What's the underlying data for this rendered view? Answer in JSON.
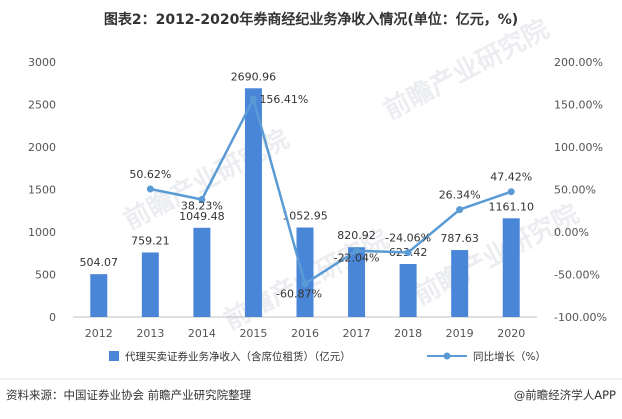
{
  "chart_data": {
    "type": "bar",
    "title": "图表2：2012-2020年券商经纪业务净收入情况(单位：亿元，%)",
    "categories": [
      "2012",
      "2013",
      "2014",
      "2015",
      "2016",
      "2017",
      "2018",
      "2019",
      "2020"
    ],
    "series": [
      {
        "name": "代理买卖证券业务净收入（含席位租赁）（亿元）",
        "type": "bar",
        "axis": "left",
        "color": "#4a86d8",
        "values": [
          504.07,
          759.21,
          1049.48,
          2690.96,
          1052.95,
          820.92,
          623.42,
          787.63,
          1161.1
        ],
        "labels": [
          "504.07",
          "759.21",
          "1049.48",
          "2690.96",
          "1052.95",
          "820.92",
          "623.42",
          "787.63",
          "1161.10"
        ]
      },
      {
        "name": "同比增长（%）",
        "type": "line",
        "axis": "right",
        "color": "#5b9bd5",
        "values": [
          null,
          50.62,
          38.23,
          156.41,
          -60.87,
          -22.04,
          -24.06,
          26.34,
          47.42
        ],
        "labels": [
          "",
          "50.62%",
          "38.23%",
          "156.41%",
          "-60.87%",
          "-22.04%",
          "-24.06%",
          "26.34%",
          "47.42%"
        ]
      }
    ],
    "y_left": {
      "ylim": [
        0,
        3000
      ],
      "ticks": [
        "0",
        "500",
        "1000",
        "1500",
        "2000",
        "2500",
        "3000"
      ]
    },
    "y_right": {
      "ylim": [
        -100,
        200
      ],
      "ticks": [
        "-100.00%",
        "-50.00%",
        "0.00%",
        "50.00%",
        "100.00%",
        "150.00%",
        "200.00%"
      ]
    },
    "grid": false,
    "legend": "bottom"
  },
  "footer": {
    "source": "资料来源：中国证券业协会 前瞻产业研究院整理",
    "brand": "@前瞻经济学人APP"
  },
  "watermark": {
    "text": "前瞻产业研究院"
  }
}
